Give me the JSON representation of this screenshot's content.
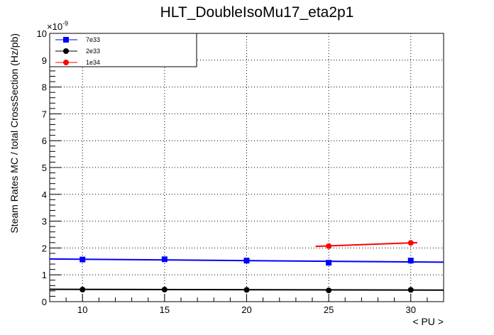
{
  "chart_data": {
    "type": "line",
    "title": "HLT_DoubleIsoMu17_eta2p1",
    "xlabel": "< PU >",
    "ylabel": "Steam Rates MC / total CrossSection (Hz/pb)",
    "y_exponent_label": "×10",
    "y_exponent_power": "-9",
    "xlim": [
      8,
      32
    ],
    "ylim": [
      0,
      10
    ],
    "x_ticks": [
      10,
      15,
      20,
      25,
      30
    ],
    "x_tick_labels": [
      "10",
      "15",
      "20",
      "25",
      "30"
    ],
    "y_ticks": [
      0,
      1,
      2,
      3,
      4,
      5,
      6,
      7,
      8,
      9,
      10
    ],
    "y_tick_labels": [
      "0",
      "1",
      "2",
      "3",
      "4",
      "5",
      "6",
      "7",
      "8",
      "9",
      "10"
    ],
    "grid": true,
    "legend_position": "top-left",
    "series": [
      {
        "name": "7e33",
        "color": "#0000ff",
        "marker": "square",
        "x": [
          10,
          15,
          20,
          25,
          30
        ],
        "y": [
          1.57,
          1.58,
          1.53,
          1.45,
          1.53
        ],
        "fit_line": {
          "x": [
            8,
            32
          ],
          "y": [
            1.59,
            1.47
          ]
        }
      },
      {
        "name": "2e33",
        "color": "#000000",
        "marker": "circle",
        "x": [
          10,
          15,
          20,
          25,
          30
        ],
        "y": [
          0.45,
          0.45,
          0.44,
          0.42,
          0.44
        ],
        "fit_line": {
          "x": [
            8,
            32
          ],
          "y": [
            0.46,
            0.43
          ]
        }
      },
      {
        "name": "1e34",
        "color": "#ff0000",
        "marker": "circle",
        "x": [
          25,
          30
        ],
        "y": [
          2.07,
          2.19
        ],
        "fit_line": {
          "x": [
            24.2,
            30.4
          ],
          "y": [
            2.06,
            2.2
          ]
        }
      }
    ]
  }
}
